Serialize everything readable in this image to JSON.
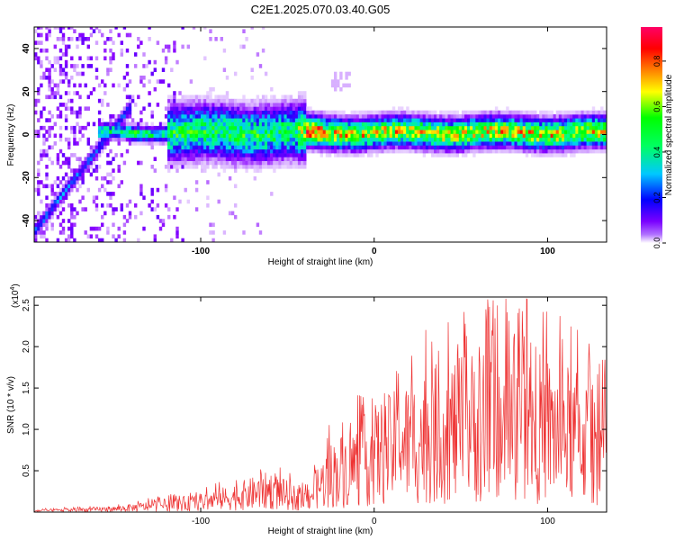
{
  "title": "C2E1.2025.070.03.40.G05",
  "chart_data": [
    {
      "type": "heatmap",
      "xlabel": "Height of straight line (km)",
      "ylabel": "Frequency (Hz)",
      "xlim": [
        -196,
        134
      ],
      "ylim": [
        -50,
        50
      ],
      "xticks": [
        -100,
        0,
        100
      ],
      "yticks": [
        -40,
        -20,
        0,
        20,
        40
      ],
      "colorbar": {
        "label": "Normalized spectral amplitude",
        "range": [
          0,
          0.95
        ],
        "ticks": [
          0.0,
          0.2,
          0.4,
          0.6,
          0.8
        ],
        "colors": [
          "#ffffff",
          "#7a00ff",
          "#0000ff",
          "#00c8ff",
          "#00ff00",
          "#ffff00",
          "#ff8000",
          "#ff0000",
          "#ff0066"
        ]
      },
      "features": {
        "ridge_start": {
          "x": -196,
          "y": -45
        },
        "ridge_end": {
          "x": -145,
          "y": 8
        },
        "main_band_center": 0,
        "strong_band_x_range": [
          -40,
          134
        ]
      }
    },
    {
      "type": "line",
      "xlabel": "Height of straight line (km)",
      "ylabel": "SNR (10 * v/v)",
      "yscale_label": "(x10",
      "yscale_exp": "4",
      "xlim": [
        -196,
        134
      ],
      "ylim": [
        0,
        26000
      ],
      "xticks": [
        -100,
        0,
        100
      ],
      "yticks": [
        0.5,
        1.0,
        1.5,
        2.0,
        2.5
      ],
      "series": [
        {
          "color": "#ee3333",
          "envelope": [
            {
              "x": -196,
              "y": 300
            },
            {
              "x": -150,
              "y": 700
            },
            {
              "x": -120,
              "y": 1600
            },
            {
              "x": -100,
              "y": 2200
            },
            {
              "x": -80,
              "y": 3500
            },
            {
              "x": -60,
              "y": 5000
            },
            {
              "x": -40,
              "y": 2600
            },
            {
              "x": -25,
              "y": 8500
            },
            {
              "x": -10,
              "y": 11000
            },
            {
              "x": 0,
              "y": 13000
            },
            {
              "x": 20,
              "y": 16000
            },
            {
              "x": 40,
              "y": 18500
            },
            {
              "x": 60,
              "y": 20000
            },
            {
              "x": 80,
              "y": 20500
            },
            {
              "x": 100,
              "y": 19000
            },
            {
              "x": 120,
              "y": 17000
            },
            {
              "x": 134,
              "y": 14000
            }
          ]
        }
      ]
    }
  ]
}
